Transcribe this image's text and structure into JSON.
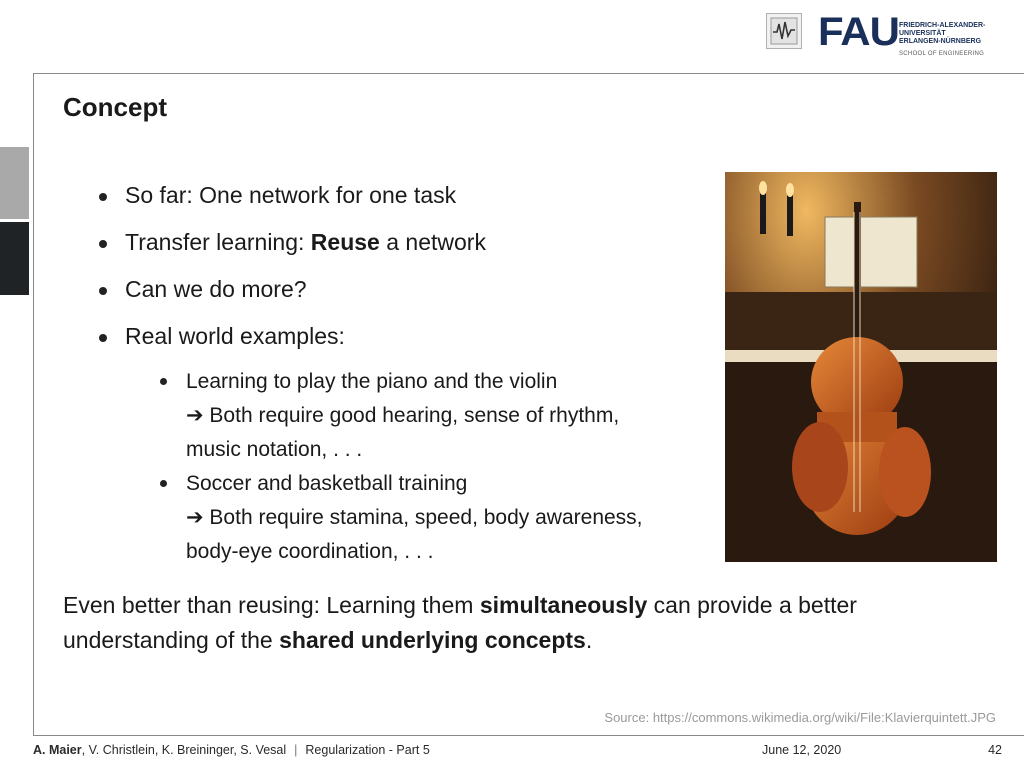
{
  "header": {
    "logo_mark": "FAU",
    "university_lines": [
      "FRIEDRICH-ALEXANDER-",
      "UNIVERSITÄT",
      "ERLANGEN-NÜRNBERG"
    ],
    "school": "SCHOOL OF ENGINEERING"
  },
  "slide": {
    "title": "Concept",
    "bullets": [
      "So far: One network for one task",
      {
        "pre": "Transfer learning: ",
        "bold": "Reuse",
        "post": " a network"
      },
      "Can we do more?",
      "Real world examples:"
    ],
    "sub_bullets": [
      {
        "line1": "Learning to play the piano and the violin",
        "line2": "➔ Both require good hearing, sense of rhythm,",
        "line3": "music notation, . . ."
      },
      {
        "line1": "Soccer and basketball training",
        "line2": "➔ Both require stamina, speed, body awareness,",
        "line3": "body-eye coordination, . . ."
      }
    ],
    "summary": {
      "p1": "Even better than reusing: Learning them ",
      "b1": "simultaneously",
      "p2": " can provide a better understanding of the ",
      "b2": "shared underlying concepts",
      "p3": "."
    },
    "source": "Source: https://commons.wikimedia.org/wiki/File:Klavierquintett.JPG"
  },
  "footer": {
    "author_bold": "A. Maier",
    "authors_rest": ", V. Christlein, K. Breininger, S. Vesal",
    "separator": "|",
    "lecture": "Regularization - Part 5",
    "date": "June 12, 2020",
    "page": "42"
  },
  "colors": {
    "fau_blue": "#1a2f5a",
    "tab_grey": "#a9a9a9",
    "tab_dark": "#1f2326"
  }
}
